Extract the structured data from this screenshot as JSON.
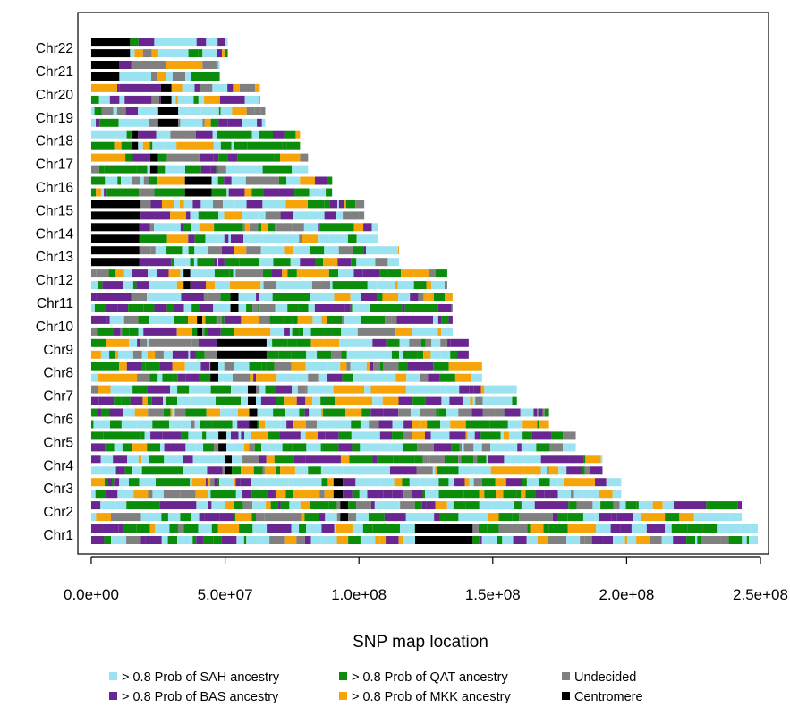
{
  "chart_data": {
    "type": "bar",
    "xlabel": "SNP map location",
    "xlim": [
      -5000000,
      253000000
    ],
    "x_ticks": [
      {
        "value": 0,
        "label": "0.0e+00"
      },
      {
        "value": 50000000,
        "label": "5.0e+07"
      },
      {
        "value": 100000000,
        "label": "1.0e+08"
      },
      {
        "value": 150000000,
        "label": "1.5e+08"
      },
      {
        "value": 200000000,
        "label": "2.0e+08"
      },
      {
        "value": 250000000,
        "label": "2.5e+08"
      }
    ],
    "legend": [
      {
        "key": "SAH",
        "label": "> 0.8 Prob of SAH ancestry",
        "color": "#9be3f0"
      },
      {
        "key": "QAT",
        "label": "> 0.8 Prob of QAT ancestry",
        "color": "#0b8c0b"
      },
      {
        "key": "UND",
        "label": "Undecided",
        "color": "#808080"
      },
      {
        "key": "BAS",
        "label": "> 0.8 Prob of BAS ancestry",
        "color": "#6a2690"
      },
      {
        "key": "MKK",
        "label": "> 0.8 Prob of MKK ancestry",
        "color": "#f5a50a"
      },
      {
        "key": "CEN",
        "label": "Centromere",
        "color": "#000000"
      }
    ],
    "legend_position": "bottom",
    "chromosomes": [
      {
        "name": "Chr1",
        "length": 249000000,
        "centromere": [
          121000000,
          142500000
        ]
      },
      {
        "name": "Chr2",
        "length": 243000000,
        "centromere": [
          93000000,
          96000000
        ]
      },
      {
        "name": "Chr3",
        "length": 198000000,
        "centromere": [
          90500000,
          94000000
        ]
      },
      {
        "name": "Chr4",
        "length": 191000000,
        "centromere": [
          50000000,
          52500000
        ]
      },
      {
        "name": "Chr5",
        "length": 181000000,
        "centromere": [
          47500000,
          50500000
        ]
      },
      {
        "name": "Chr6",
        "length": 171000000,
        "centromere": [
          59000000,
          62000000
        ]
      },
      {
        "name": "Chr7",
        "length": 159000000,
        "centromere": [
          58500000,
          61500000
        ]
      },
      {
        "name": "Chr8",
        "length": 146000000,
        "centromere": [
          44500000,
          47500000
        ]
      },
      {
        "name": "Chr9",
        "length": 141000000,
        "centromere": [
          47000000,
          65500000
        ]
      },
      {
        "name": "Chr10",
        "length": 135000000,
        "centromere": [
          39500000,
          41500000
        ]
      },
      {
        "name": "Chr11",
        "length": 135000000,
        "centromere": [
          52000000,
          55000000
        ]
      },
      {
        "name": "Chr12",
        "length": 133000000,
        "centromere": [
          34500000,
          37000000
        ]
      },
      {
        "name": "Chr13",
        "length": 115000000,
        "centromere": [
          0,
          18000000
        ]
      },
      {
        "name": "Chr14",
        "length": 107000000,
        "centromere": [
          0,
          18000000
        ]
      },
      {
        "name": "Chr15",
        "length": 102000000,
        "centromere": [
          0,
          18500000
        ]
      },
      {
        "name": "Chr16",
        "length": 90000000,
        "centromere": [
          35000000,
          45000000
        ]
      },
      {
        "name": "Chr17",
        "length": 81000000,
        "centromere": [
          22000000,
          25000000
        ]
      },
      {
        "name": "Chr18",
        "length": 78000000,
        "centromere": [
          15000000,
          17500000
        ]
      },
      {
        "name": "Chr19",
        "length": 65000000,
        "centromere": [
          25000000,
          32500000
        ]
      },
      {
        "name": "Chr20",
        "length": 63000000,
        "centromere": [
          26000000,
          30000000
        ]
      },
      {
        "name": "Chr21",
        "length": 48000000,
        "centromere": [
          0,
          10500000
        ]
      },
      {
        "name": "Chr22",
        "length": 51000000,
        "centromere": [
          0,
          14500000
        ]
      }
    ]
  }
}
